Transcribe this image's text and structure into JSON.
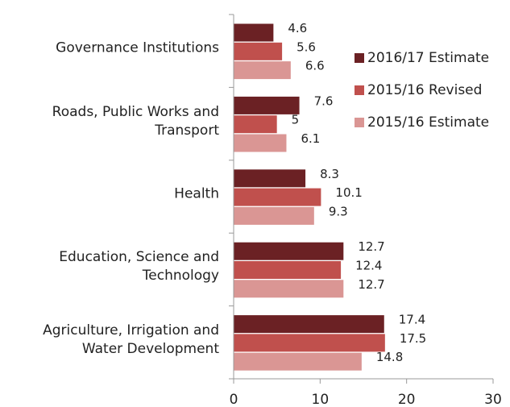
{
  "chart_data": {
    "type": "hbar",
    "categories": [
      "Governance Institutions",
      "Roads, Public Works and Transport",
      "Health",
      "Education, Science and Technology",
      "Agriculture, Irrigation and Water Development"
    ],
    "series": [
      {
        "name": "2016/17 Estimate",
        "color": "#6b2124",
        "values": [
          4.6,
          7.6,
          8.3,
          12.7,
          17.4
        ]
      },
      {
        "name": "2015/16 Revised",
        "color": "#c0504d",
        "values": [
          5.6,
          5,
          10.1,
          12.4,
          17.5
        ]
      },
      {
        "name": "2015/16 Estimate",
        "color": "#da9694",
        "values": [
          6.6,
          6.1,
          9.3,
          12.7,
          14.8
        ]
      }
    ],
    "xlim": [
      0,
      30
    ],
    "xticks": [
      0,
      10,
      20,
      30
    ],
    "legend": "upper right"
  }
}
